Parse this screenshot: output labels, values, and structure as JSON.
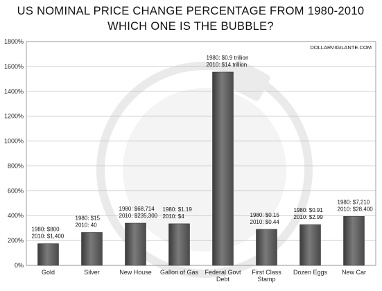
{
  "chart_data": {
    "type": "bar",
    "title": "US NOMINAL PRICE CHANGE PERCENTAGE FROM 1980-2010",
    "subtitle": "WHICH ONE IS THE BUBBLE?",
    "watermark": "DOLLARVIGILANTE.COM",
    "categories": [
      [
        "Gold"
      ],
      [
        "Silver"
      ],
      [
        "New House"
      ],
      [
        "Gallon of Gas"
      ],
      [
        "Federal Govt",
        "Debt"
      ],
      [
        "First Class",
        "Stamp"
      ],
      [
        "Dozen Eggs"
      ],
      [
        "New Car"
      ]
    ],
    "values": [
      175,
      265,
      340,
      335,
      1555,
      290,
      328,
      394
    ],
    "annotations": [
      [
        "1980: $800",
        "2010: $1,400"
      ],
      [
        "1980: $15",
        "2010: 40"
      ],
      [
        "1980: $68,714",
        "2010: $235,300"
      ],
      [
        "1980: $1.19",
        "2010: $4"
      ],
      [
        "1980: $0.9 trillion",
        "2010: $14 trillion"
      ],
      [
        "1980: $0.15",
        "2010: $0.44"
      ],
      [
        "1980: $0.91",
        "2010: $2.99"
      ],
      [
        "1980: $7,210",
        "2010: $28,400"
      ]
    ],
    "yticks": [
      "0%",
      "200%",
      "400%",
      "600%",
      "800%",
      "1000%",
      "1200%",
      "1400%",
      "1600%",
      "1800%"
    ],
    "ylim": [
      0,
      1800
    ],
    "grid": true,
    "colors": {
      "bar": "#4a4a4a",
      "bar_highlight": "#7a7a7a",
      "grid": "#bfbfbf",
      "axis": "#888888",
      "background_emblem": "#d9d9d9"
    }
  }
}
